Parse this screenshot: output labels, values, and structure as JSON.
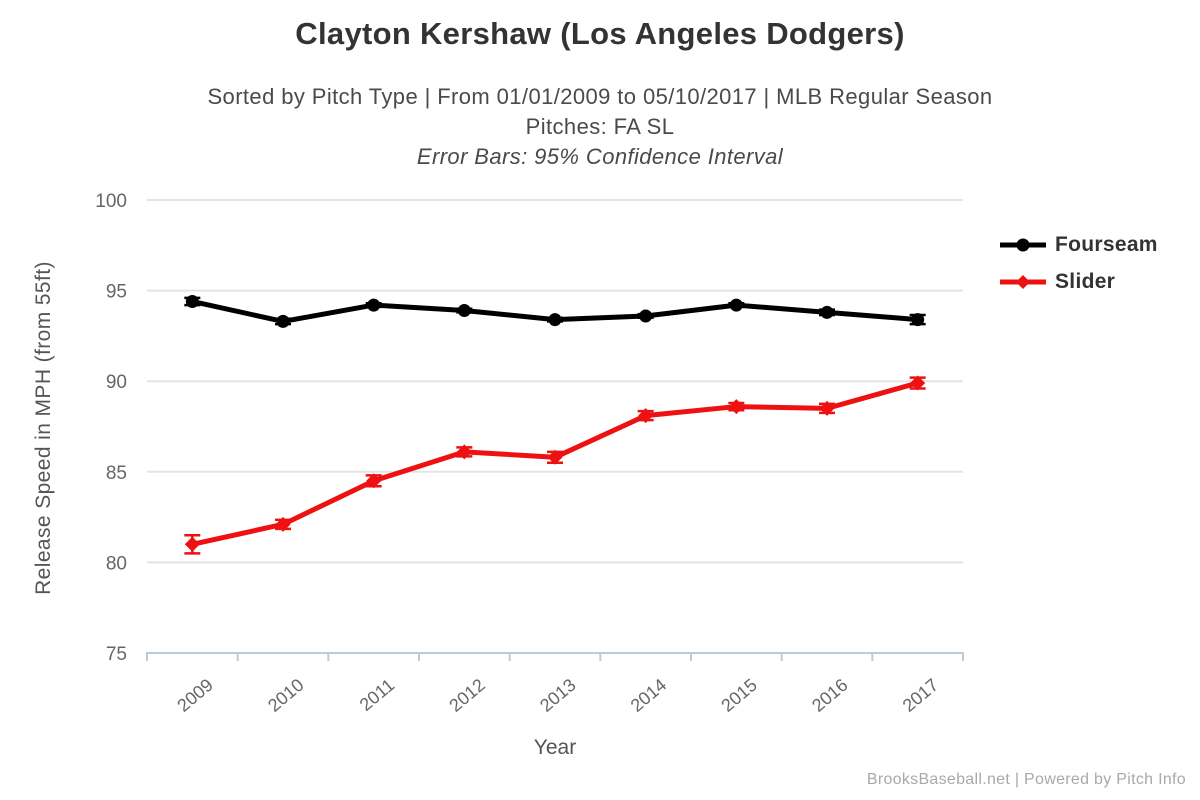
{
  "header": {
    "title": "Clayton Kershaw (Los Angeles Dodgers)",
    "subtitle1": "Sorted by Pitch Type | From 01/01/2009 to 05/10/2017 | MLB Regular Season",
    "subtitle2": "Pitches: FA SL",
    "subtitle3": "Error Bars: 95% Confidence Interval"
  },
  "chart_data": {
    "type": "line",
    "title": "Clayton Kershaw (Los Angeles Dodgers)",
    "categories": [
      "2009",
      "2010",
      "2011",
      "2012",
      "2013",
      "2014",
      "2015",
      "2016",
      "2017"
    ],
    "series": [
      {
        "name": "Fourseam",
        "color": "#000000",
        "marker": "circle",
        "values": [
          94.4,
          93.3,
          94.2,
          93.9,
          93.4,
          93.6,
          94.2,
          93.8,
          93.4
        ],
        "errors": [
          0.2,
          0.15,
          0.1,
          0.1,
          0.1,
          0.1,
          0.1,
          0.15,
          0.25
        ]
      },
      {
        "name": "Slider",
        "color": "#ee1111",
        "marker": "diamond",
        "values": [
          81.0,
          82.1,
          84.5,
          86.1,
          85.8,
          88.1,
          88.6,
          88.5,
          89.9
        ],
        "errors": [
          0.5,
          0.25,
          0.3,
          0.25,
          0.3,
          0.25,
          0.2,
          0.25,
          0.3
        ]
      }
    ],
    "xlabel": "Year",
    "ylabel": "Release Speed in MPH (from 55ft)",
    "ylim": [
      75,
      100
    ],
    "yticks": [
      75,
      80,
      85,
      90,
      95,
      100
    ],
    "grid": true,
    "legend_position": "right",
    "error_bars": "95% Confidence Interval"
  },
  "footer": {
    "credit": "BrooksBaseball.net | Powered by Pitch Info"
  },
  "colors": {
    "axis_line": "#bccbda",
    "gridline": "#e4e4e4",
    "tick_label": "#666666",
    "title": "#333333",
    "subtitle": "#4a4a4a",
    "footer": "#a9a9a9"
  }
}
